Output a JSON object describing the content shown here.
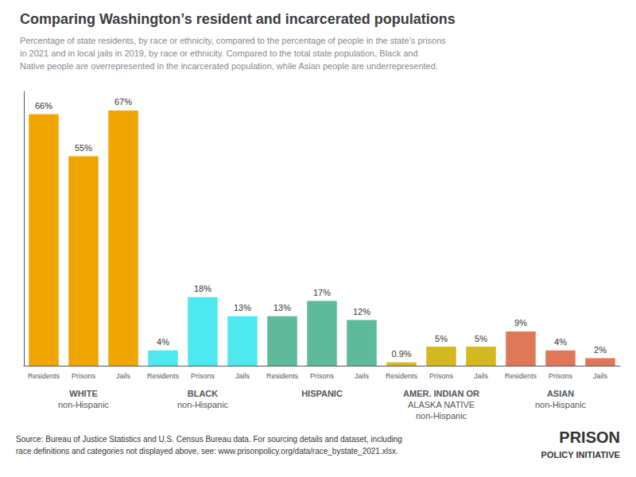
{
  "chart_data": {
    "type": "bar",
    "title": "Comparing Washington’s resident and incarcerated populations",
    "subtitle": "Percentage of state residents, by race or ethnicity, compared to the percentage of people in the state’s prisons\nin 2021 and in local jails in 2019, by race or ethnicity. Compared to the total state population, Black and\nNative people are overrepresented in the incarcerated population, while Asian people are underrepresented.",
    "annotations": [
      "Source: Bureau of Justice Statistics and U.S. Census Bureau data. For sourcing details and dataset, including\nrace definitions and categories not displayed above, see: www.prisonpolicy.org/data/race_bystate_2021.xlsx.",
      "PRISON",
      "POLICY INITIATIVE"
    ],
    "categories": [
      "WHITE\nnon-Hispanic",
      "BLACK\nnon-Hispanic",
      "HISPANIC",
      "AMER. INDIAN OR\nALASKA NATIVE\nnon-Hispanic",
      "ASIAN\nnon-Hispanic"
    ],
    "series": [
      {
        "name": "Residents",
        "values": [
          66,
          4,
          13,
          0.9,
          9
        ],
        "value_labels": [
          "66%",
          "4%",
          "13%",
          "0.9%",
          "9%"
        ],
        "colors": [
          "#f0a500",
          "#4de8f0",
          "#5dba9a",
          "#d4b820",
          "#e07858"
        ]
      },
      {
        "name": "Prisons",
        "values": [
          55,
          18,
          17,
          5,
          4
        ],
        "value_labels": [
          "55%",
          "18%",
          "17%",
          "5%",
          "4%"
        ],
        "colors": [
          "#f0a500",
          "#4de8f0",
          "#5dba9a",
          "#d4b820",
          "#e07858"
        ]
      },
      {
        "name": "Jails",
        "values": [
          67,
          13,
          12,
          5,
          2
        ],
        "value_labels": [
          "67%",
          "13%",
          "12%",
          "5%",
          "2%"
        ],
        "colors": [
          "#f0a500",
          "#4de8f0",
          "#5dba9a",
          "#d4b820",
          "#e07858"
        ]
      }
    ],
    "ylim": [
      0,
      72
    ],
    "tick_labels": "x",
    "grid": false,
    "data_labels": true
  }
}
